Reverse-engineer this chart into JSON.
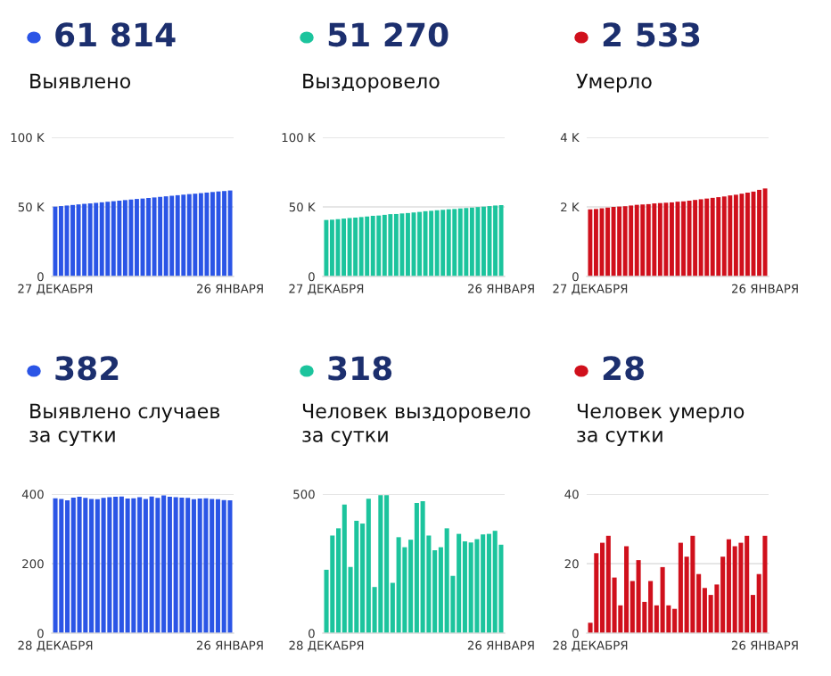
{
  "chart_data": [
    {
      "type": "bar",
      "title": "61 814",
      "subtitle": "Выявлено",
      "categories": [
        "27 ДЕКАБРЯ",
        null,
        null,
        null,
        null,
        null,
        null,
        null,
        null,
        null,
        null,
        null,
        null,
        null,
        null,
        null,
        null,
        null,
        null,
        null,
        null,
        null,
        null,
        null,
        null,
        null,
        null,
        null,
        null,
        null,
        "26 ЯНВАРЯ"
      ],
      "values": [
        50200,
        50600,
        51000,
        51400,
        51800,
        52200,
        52500,
        52900,
        53300,
        53700,
        54100,
        54500,
        54900,
        55300,
        55700,
        56000,
        56400,
        56800,
        57200,
        57600,
        58000,
        58400,
        58800,
        59200,
        59500,
        59900,
        60300,
        60700,
        61100,
        61400,
        61800
      ],
      "color": "#2b55e6",
      "ylim": [
        0,
        100000
      ],
      "yticks": [
        0,
        {
          "value": 50000,
          "label": "50 K"
        },
        {
          "value": 100000,
          "label": "100 K"
        }
      ],
      "grid": "y"
    },
    {
      "type": "bar",
      "title": "51 270",
      "subtitle": "Выздоровело",
      "categories": [
        "27 ДЕКАБРЯ",
        null,
        null,
        null,
        null,
        null,
        null,
        null,
        null,
        null,
        null,
        null,
        null,
        null,
        null,
        null,
        null,
        null,
        null,
        null,
        null,
        null,
        null,
        null,
        null,
        null,
        null,
        null,
        null,
        null,
        "26 ЯНВАРЯ"
      ],
      "values": [
        40600,
        40800,
        41200,
        41600,
        42000,
        42300,
        42700,
        43100,
        43600,
        43800,
        44300,
        44800,
        44900,
        45300,
        45600,
        46000,
        46400,
        46900,
        47200,
        47600,
        47900,
        48300,
        48500,
        48900,
        49200,
        49500,
        49900,
        50200,
        50600,
        51000,
        51300
      ],
      "color": "#1cc49d",
      "ylim": [
        0,
        100000
      ],
      "yticks": [
        0,
        {
          "value": 50000,
          "label": "50 K"
        },
        {
          "value": 100000,
          "label": "100 K"
        }
      ],
      "grid": "y"
    },
    {
      "type": "bar",
      "title": "2 533",
      "subtitle": "Умерло",
      "categories": [
        "27 ДЕКАБРЯ",
        null,
        null,
        null,
        null,
        null,
        null,
        null,
        null,
        null,
        null,
        null,
        null,
        null,
        null,
        null,
        null,
        null,
        null,
        null,
        null,
        null,
        null,
        null,
        null,
        null,
        null,
        null,
        null,
        null,
        "26 ЯНВАРЯ"
      ],
      "values": [
        1930,
        1940,
        1960,
        1980,
        2000,
        2010,
        2020,
        2040,
        2060,
        2070,
        2080,
        2100,
        2110,
        2120,
        2130,
        2150,
        2160,
        2180,
        2200,
        2220,
        2240,
        2260,
        2280,
        2300,
        2330,
        2350,
        2380,
        2410,
        2440,
        2490,
        2530
      ],
      "color": "#d0101c",
      "ylim": [
        0,
        4000
      ],
      "yticks": [
        0,
        {
          "value": 2000,
          "label": "2 K"
        },
        {
          "value": 4000,
          "label": "4 K"
        }
      ],
      "grid": "y"
    },
    {
      "type": "bar",
      "title": "382",
      "subtitle": "Выявлено случаев\nза сутки",
      "categories": [
        "28 ДЕКАБРЯ",
        null,
        null,
        null,
        null,
        null,
        null,
        null,
        null,
        null,
        null,
        null,
        null,
        null,
        null,
        null,
        null,
        null,
        null,
        null,
        null,
        null,
        null,
        null,
        null,
        null,
        null,
        null,
        null,
        "26 ЯНВАРЯ"
      ],
      "values": [
        388,
        386,
        382,
        390,
        392,
        389,
        386,
        385,
        389,
        391,
        392,
        393,
        387,
        388,
        391,
        386,
        393,
        389,
        396,
        392,
        391,
        390,
        389,
        385,
        387,
        388,
        386,
        385,
        383,
        382
      ],
      "color": "#2b55e6",
      "ylim": [
        0,
        400
      ],
      "yticks": [
        0,
        200,
        400
      ],
      "grid": "y"
    },
    {
      "type": "bar",
      "title": "318",
      "subtitle": "Человек выздоровело\nза сутки",
      "categories": [
        "28 ДЕКАБРЯ",
        null,
        null,
        null,
        null,
        null,
        null,
        null,
        null,
        null,
        null,
        null,
        null,
        null,
        null,
        null,
        null,
        null,
        null,
        null,
        null,
        null,
        null,
        null,
        null,
        null,
        null,
        null,
        null,
        "26 ЯНВАРЯ"
      ],
      "values": [
        228,
        351,
        377,
        462,
        238,
        404,
        394,
        483,
        166,
        496,
        496,
        181,
        345,
        309,
        336,
        468,
        474,
        351,
        298,
        309,
        377,
        206,
        357,
        330,
        326,
        338,
        355,
        357,
        368,
        318
      ],
      "color": "#1cc49d",
      "ylim": [
        0,
        500
      ],
      "yticks": [
        0,
        500
      ],
      "grid": "y"
    },
    {
      "type": "bar",
      "title": "28",
      "subtitle": "Человек умерло\nза сутки",
      "categories": [
        "28 ДЕКАБРЯ",
        null,
        null,
        null,
        null,
        null,
        null,
        null,
        null,
        null,
        null,
        null,
        null,
        null,
        null,
        null,
        null,
        null,
        null,
        null,
        null,
        null,
        null,
        null,
        null,
        null,
        null,
        null,
        null,
        "26 ЯНВАРЯ"
      ],
      "values": [
        3,
        23,
        26,
        28,
        16,
        8,
        25,
        15,
        21,
        9,
        15,
        8,
        19,
        8,
        7,
        26,
        22,
        28,
        17,
        13,
        11,
        14,
        22,
        27,
        25,
        26,
        28,
        11,
        17,
        28
      ],
      "color": "#d0101c",
      "ylim": [
        0,
        40
      ],
      "yticks": [
        0,
        20,
        40
      ],
      "grid": "y"
    }
  ]
}
